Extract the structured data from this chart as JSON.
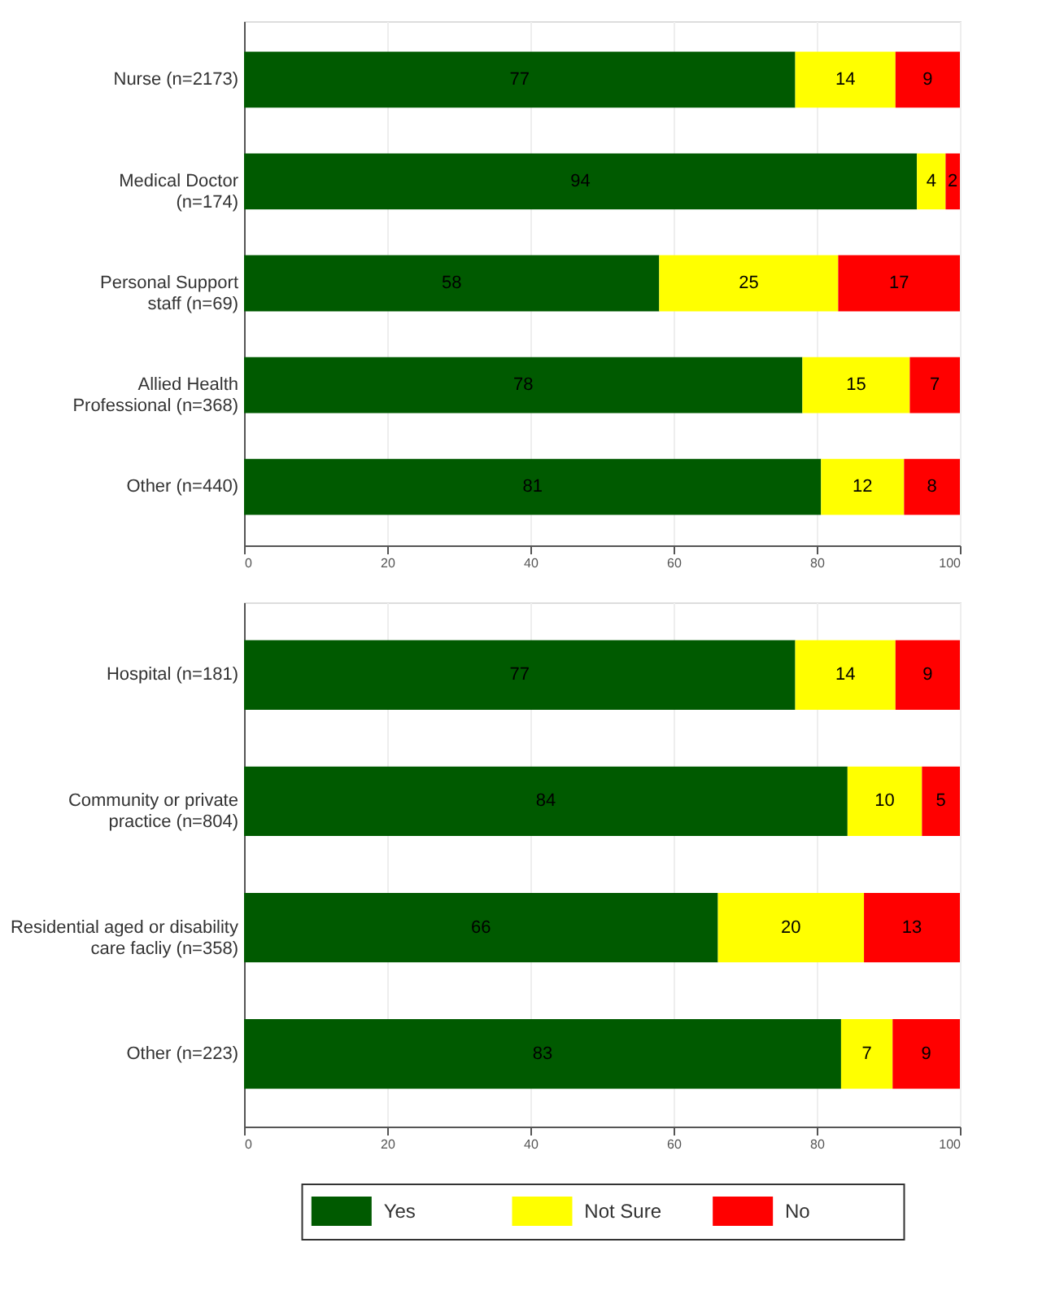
{
  "chart_data": [
    {
      "type": "bar",
      "orientation": "horizontal",
      "stacked": true,
      "grid": "x",
      "legend": "bottom",
      "categories": [
        "Nurse (n=2173)",
        "Medical Doctor\n(n=174)",
        "Personal Support\nstaff (n=69)",
        "Allied Health\nProfessional (n=368)",
        "Other (n=440)"
      ],
      "series": [
        {
          "name": "Yes",
          "color": "#005a00",
          "values": [
            77,
            94,
            58,
            78,
            80.6
          ],
          "value_labels": [
            "77",
            "94",
            "58",
            "78",
            "81"
          ]
        },
        {
          "name": "Not Sure",
          "color": "#ffff00",
          "values": [
            14,
            4,
            25,
            15,
            11.6
          ],
          "value_labels": [
            "14",
            "4",
            "25",
            "15",
            "12"
          ]
        },
        {
          "name": "No",
          "color": "#ff0000",
          "values": [
            9,
            2,
            17,
            7,
            7.8
          ],
          "value_labels": [
            "9",
            "2",
            "17",
            "7",
            "8"
          ]
        }
      ],
      "xlim": [
        0,
        100
      ],
      "xticks": [
        0,
        20,
        40,
        60,
        80,
        100
      ]
    },
    {
      "type": "bar",
      "orientation": "horizontal",
      "stacked": true,
      "grid": "x",
      "categories": [
        "Hospital (n=181)",
        "Community or private\npractice (n=804)",
        "Residential aged or disability\ncare facliy (n=358)",
        "Other (n=223)"
      ],
      "series": [
        {
          "color": "#005a00",
          "values": [
            77,
            84.3,
            66.2,
            83.4
          ],
          "value_labels": [
            "77",
            "84",
            "66",
            "83"
          ]
        },
        {
          "color": "#ffff00",
          "values": [
            14,
            10.4,
            20.4,
            7.2
          ],
          "value_labels": [
            "14",
            "10",
            "20",
            "7"
          ]
        },
        {
          "color": "#ff0000",
          "values": [
            9,
            5.3,
            13.4,
            9.4
          ],
          "value_labels": [
            "9",
            "5",
            "13",
            "9"
          ]
        }
      ],
      "xlim": [
        0,
        100
      ],
      "xticks": [
        0,
        20,
        40,
        60,
        80,
        100
      ]
    }
  ]
}
